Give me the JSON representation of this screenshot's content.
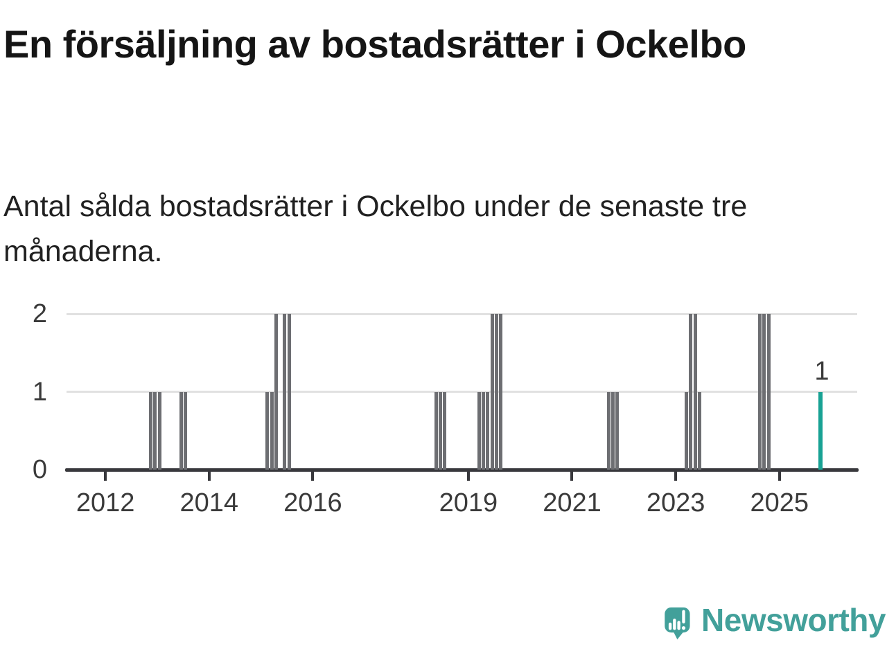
{
  "header": {
    "title": "En försäljning av bostadsrätter i Ockelbo",
    "subtitle": "Antal sålda bostadsrätter i Ockelbo under de senaste tre månaderna."
  },
  "chart_data": {
    "type": "bar",
    "title": "En försäljning av bostadsrätter i Ockelbo",
    "subtitle": "Antal sålda bostadsrätter i Ockelbo under de senaste tre månaderna.",
    "x_domain": [
      2011.25,
      2026.5
    ],
    "ylim": [
      0,
      2
    ],
    "grid": true,
    "y_ticks": [
      {
        "v": 0,
        "label": "0"
      },
      {
        "v": 1,
        "label": "1"
      },
      {
        "v": 2,
        "label": "2"
      }
    ],
    "x_ticks": [
      {
        "year": 2012,
        "label": "2012"
      },
      {
        "year": 2014,
        "label": "2014"
      },
      {
        "year": 2016,
        "label": "2016"
      },
      {
        "year": 2019,
        "label": "2019"
      },
      {
        "year": 2021,
        "label": "2021"
      },
      {
        "year": 2023,
        "label": "2023"
      },
      {
        "year": 2025,
        "label": "2025"
      }
    ],
    "months": [
      {
        "month": "2012-11",
        "value": 1
      },
      {
        "month": "2012-12",
        "value": 1
      },
      {
        "month": "2013-01",
        "value": 1
      },
      {
        "month": "2013-06",
        "value": 1
      },
      {
        "month": "2013-07",
        "value": 1
      },
      {
        "month": "2015-02",
        "value": 1
      },
      {
        "month": "2015-03",
        "value": 1
      },
      {
        "month": "2015-04",
        "value": 2
      },
      {
        "month": "2015-06",
        "value": 2
      },
      {
        "month": "2015-07",
        "value": 2
      },
      {
        "month": "2018-05",
        "value": 1
      },
      {
        "month": "2018-06",
        "value": 1
      },
      {
        "month": "2018-07",
        "value": 1
      },
      {
        "month": "2019-03",
        "value": 1
      },
      {
        "month": "2019-04",
        "value": 1
      },
      {
        "month": "2019-05",
        "value": 1
      },
      {
        "month": "2019-06",
        "value": 2
      },
      {
        "month": "2019-07",
        "value": 2
      },
      {
        "month": "2019-08",
        "value": 2
      },
      {
        "month": "2021-09",
        "value": 1
      },
      {
        "month": "2021-10",
        "value": 1
      },
      {
        "month": "2021-11",
        "value": 1
      },
      {
        "month": "2023-03",
        "value": 1
      },
      {
        "month": "2023-04",
        "value": 2
      },
      {
        "month": "2023-05",
        "value": 2
      },
      {
        "month": "2023-06",
        "value": 1
      },
      {
        "month": "2024-08",
        "value": 2
      },
      {
        "month": "2024-09",
        "value": 2
      },
      {
        "month": "2024-10",
        "value": 2
      }
    ],
    "highlight": {
      "month": "2025-10",
      "value": 1,
      "label": "1"
    },
    "colors": {
      "bar": "#6d6e72",
      "highlight": "#18a294",
      "axis": "#38383c",
      "grid": "#e1e1e1",
      "tick_text": "#3a3a3a"
    }
  },
  "footer": {
    "brand": "Newsworthy",
    "brand_color": "#42a09a"
  }
}
